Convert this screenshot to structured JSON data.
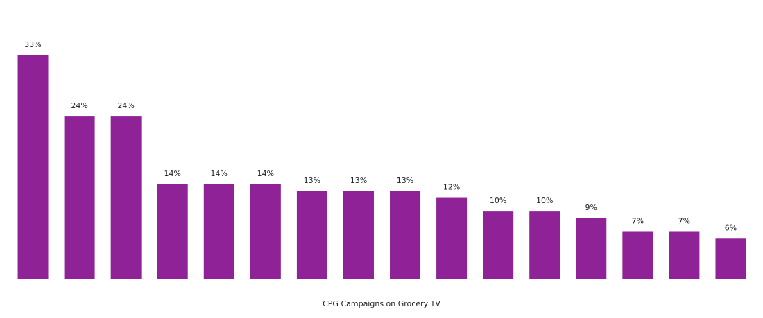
{
  "chart_data": {
    "type": "bar",
    "xlabel": "CPG Campaigns on Grocery TV",
    "categories": [
      null,
      null,
      null,
      null,
      null,
      null,
      null,
      null,
      null,
      null,
      null,
      null,
      null,
      null,
      null,
      null
    ],
    "values": [
      33,
      24,
      24,
      14,
      14,
      14,
      13,
      13,
      13,
      12,
      10,
      10,
      9,
      7,
      7,
      6
    ],
    "value_labels": [
      "33%",
      "24%",
      "24%",
      "14%",
      "14%",
      "14%",
      "13%",
      "13%",
      "13%",
      "12%",
      "10%",
      "10%",
      "9%",
      "7%",
      "7%",
      "6%"
    ],
    "color": "#8e2296",
    "ylim": [
      0,
      33
    ]
  }
}
